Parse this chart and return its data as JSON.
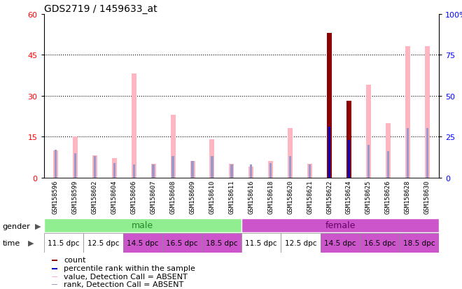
{
  "title": "GDS2719 / 1459633_at",
  "samples": [
    "GSM158596",
    "GSM158599",
    "GSM158602",
    "GSM158604",
    "GSM158606",
    "GSM158607",
    "GSM158608",
    "GSM158609",
    "GSM158610",
    "GSM158611",
    "GSM158616",
    "GSM158618",
    "GSM158620",
    "GSM158621",
    "GSM158622",
    "GSM158624",
    "GSM158625",
    "GSM158626",
    "GSM158628",
    "GSM158630"
  ],
  "pink_values": [
    10,
    15,
    8,
    7,
    38,
    5,
    23,
    6,
    14,
    5,
    4,
    6,
    18,
    5,
    0,
    28,
    34,
    20,
    48,
    48
  ],
  "red_count": [
    0,
    0,
    0,
    0,
    0,
    0,
    0,
    0,
    0,
    0,
    0,
    0,
    0,
    0,
    53,
    28,
    0,
    0,
    0,
    0
  ],
  "blue_rank_dark": [
    0,
    0,
    0,
    0,
    0,
    0,
    0,
    0,
    0,
    0,
    0,
    0,
    0,
    0,
    31,
    23,
    0,
    0,
    0,
    0
  ],
  "blue_squares": [
    17,
    15,
    13,
    9,
    8,
    8,
    13,
    10,
    13,
    8,
    8,
    9,
    13,
    8,
    0,
    0,
    20,
    16,
    30,
    30
  ],
  "has_pink": [
    1,
    1,
    1,
    1,
    1,
    1,
    1,
    1,
    1,
    1,
    1,
    1,
    1,
    1,
    0,
    1,
    1,
    1,
    1,
    1
  ],
  "has_red": [
    0,
    0,
    0,
    0,
    0,
    0,
    0,
    0,
    0,
    0,
    0,
    0,
    0,
    0,
    1,
    1,
    0,
    0,
    0,
    0
  ],
  "has_blue_dark": [
    0,
    0,
    0,
    0,
    0,
    0,
    0,
    0,
    0,
    0,
    0,
    0,
    0,
    0,
    1,
    1,
    0,
    0,
    0,
    0
  ],
  "has_blue_light": [
    1,
    1,
    1,
    1,
    1,
    1,
    1,
    1,
    1,
    1,
    1,
    1,
    1,
    1,
    0,
    0,
    1,
    1,
    1,
    1
  ],
  "ylim_left": [
    0,
    60
  ],
  "ylim_right": [
    0,
    100
  ],
  "yticks_left": [
    0,
    15,
    30,
    45,
    60
  ],
  "yticks_right": [
    0,
    25,
    50,
    75,
    100
  ],
  "yticklabels_right": [
    "0",
    "25",
    "50",
    "75",
    "100%"
  ],
  "color_pink": "#FFB6C1",
  "color_red": "#8B0000",
  "color_blue_dark": "#0000CC",
  "color_blue_light": "#9999CC",
  "color_male_bg": "#90EE90",
  "color_female_bg": "#CC55CC",
  "dotted_lines": [
    15,
    30,
    45
  ],
  "time_groups": [
    {
      "start": 0,
      "end": 2,
      "label": "11.5 dpc",
      "color": "#FFFFFF"
    },
    {
      "start": 2,
      "end": 4,
      "label": "12.5 dpc",
      "color": "#FFFFFF"
    },
    {
      "start": 4,
      "end": 6,
      "label": "14.5 dpc",
      "color": "#CC55CC"
    },
    {
      "start": 6,
      "end": 8,
      "label": "16.5 dpc",
      "color": "#CC55CC"
    },
    {
      "start": 8,
      "end": 10,
      "label": "18.5 dpc",
      "color": "#CC55CC"
    },
    {
      "start": 10,
      "end": 12,
      "label": "11.5 dpc",
      "color": "#FFFFFF"
    },
    {
      "start": 12,
      "end": 14,
      "label": "12.5 dpc",
      "color": "#FFFFFF"
    },
    {
      "start": 14,
      "end": 16,
      "label": "14.5 dpc",
      "color": "#CC55CC"
    },
    {
      "start": 16,
      "end": 18,
      "label": "16.5 dpc",
      "color": "#CC55CC"
    },
    {
      "start": 18,
      "end": 20,
      "label": "18.5 dpc",
      "color": "#CC55CC"
    }
  ]
}
